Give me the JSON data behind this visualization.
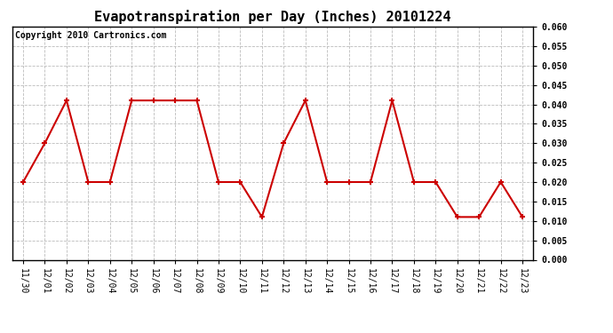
{
  "title": "Evapotranspiration per Day (Inches) 20101224",
  "copyright": "Copyright 2010 Cartronics.com",
  "x_labels": [
    "11/30",
    "12/01",
    "12/02",
    "12/03",
    "12/04",
    "12/05",
    "12/06",
    "12/07",
    "12/08",
    "12/09",
    "12/10",
    "12/11",
    "12/12",
    "12/13",
    "12/14",
    "12/15",
    "12/16",
    "12/17",
    "12/18",
    "12/19",
    "12/20",
    "12/21",
    "12/22",
    "12/23"
  ],
  "y_values": [
    0.02,
    0.03,
    0.041,
    0.02,
    0.02,
    0.041,
    0.041,
    0.041,
    0.041,
    0.02,
    0.02,
    0.011,
    0.03,
    0.041,
    0.02,
    0.02,
    0.02,
    0.041,
    0.02,
    0.02,
    0.011,
    0.011,
    0.02,
    0.011
  ],
  "line_color": "#cc0000",
  "marker": "+",
  "marker_size": 5,
  "marker_linewidth": 1.5,
  "line_width": 1.5,
  "ylim": [
    0.0,
    0.06
  ],
  "yticks": [
    0.0,
    0.005,
    0.01,
    0.015,
    0.02,
    0.025,
    0.03,
    0.035,
    0.04,
    0.045,
    0.05,
    0.055,
    0.06
  ],
  "background_color": "#ffffff",
  "plot_bg_color": "#ffffff",
  "grid_color": "#bbbbbb",
  "title_fontsize": 11,
  "copyright_fontsize": 7,
  "tick_fontsize": 7,
  "y_tick_fontweight": "bold"
}
